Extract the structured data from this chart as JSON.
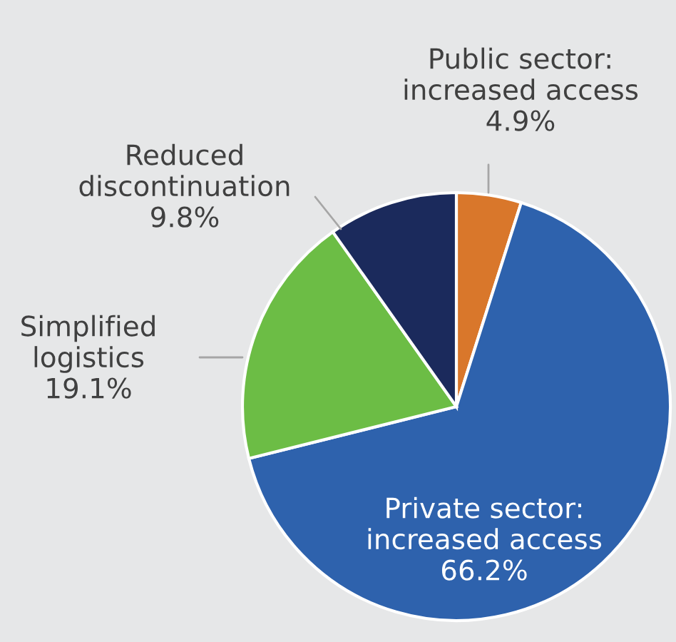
{
  "chart_data": {
    "type": "pie",
    "categories": [
      "Public sector:\nincreased access",
      "Private sector:\nincreased access",
      "Simplified\nlogistics",
      "Reduced\ndiscontinuation"
    ],
    "values": [
      4.9,
      66.2,
      19.1,
      9.8
    ],
    "colors": [
      "#d9772b",
      "#2e62ad",
      "#6cbd45",
      "#1b2a5c"
    ],
    "value_labels": [
      "4.9%",
      "66.2%",
      "19.1%",
      "9.8%"
    ]
  }
}
